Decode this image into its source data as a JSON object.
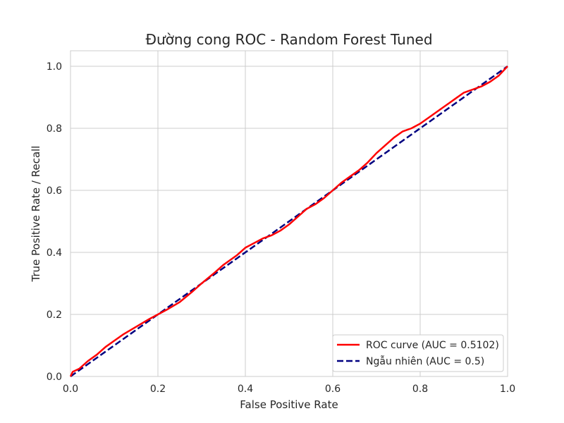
{
  "chart_data": {
    "type": "line",
    "title": "Đường cong ROC - Random Forest Tuned",
    "xlabel": "False Positive Rate",
    "ylabel": "True Positive Rate / Recall",
    "xlim": [
      0.0,
      1.0
    ],
    "ylim": [
      0.0,
      1.05
    ],
    "xticks": [
      "0.0",
      "0.2",
      "0.4",
      "0.6",
      "0.8",
      "1.0"
    ],
    "yticks": [
      "0.0",
      "0.2",
      "0.4",
      "0.6",
      "0.8",
      "1.0"
    ],
    "grid": true,
    "legend_position": "lower-right",
    "series": [
      {
        "name": "ROC curve (AUC = 0.5102)",
        "color": "#ff0000",
        "style": "solid",
        "x": [
          0.0,
          0.005,
          0.02,
          0.04,
          0.06,
          0.08,
          0.1,
          0.12,
          0.15,
          0.18,
          0.2,
          0.22,
          0.25,
          0.28,
          0.3,
          0.33,
          0.35,
          0.38,
          0.4,
          0.42,
          0.44,
          0.46,
          0.48,
          0.5,
          0.52,
          0.54,
          0.56,
          0.58,
          0.6,
          0.62,
          0.64,
          0.66,
          0.68,
          0.7,
          0.72,
          0.74,
          0.76,
          0.78,
          0.8,
          0.82,
          0.85,
          0.88,
          0.9,
          0.92,
          0.94,
          0.96,
          0.98,
          1.0
        ],
        "y": [
          0.0,
          0.015,
          0.025,
          0.05,
          0.07,
          0.095,
          0.115,
          0.135,
          0.16,
          0.185,
          0.2,
          0.215,
          0.24,
          0.275,
          0.3,
          0.335,
          0.36,
          0.39,
          0.415,
          0.43,
          0.445,
          0.455,
          0.47,
          0.49,
          0.515,
          0.54,
          0.555,
          0.575,
          0.6,
          0.625,
          0.645,
          0.665,
          0.69,
          0.72,
          0.745,
          0.77,
          0.79,
          0.8,
          0.815,
          0.835,
          0.865,
          0.895,
          0.915,
          0.925,
          0.935,
          0.95,
          0.97,
          1.0
        ]
      },
      {
        "name": "Ngẫu nhiên (AUC = 0.5)",
        "color": "#000080",
        "style": "dashed",
        "x": [
          0.0,
          1.0
        ],
        "y": [
          0.0,
          1.0
        ]
      }
    ]
  }
}
